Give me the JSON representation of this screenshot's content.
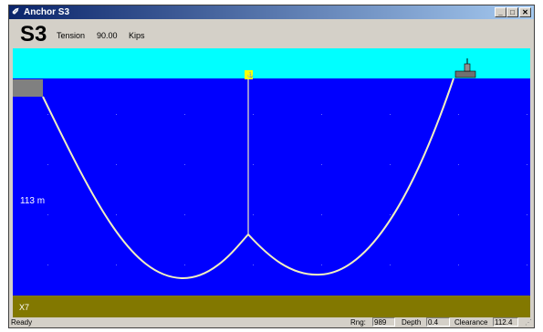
{
  "window": {
    "title": "Anchor S3"
  },
  "header": {
    "anchor_id": "S3",
    "tension_label": "Tension",
    "tension_value": "90.00",
    "tension_unit": "Kips"
  },
  "scene": {
    "depth_label": "113 m",
    "seabed_label": "X7",
    "colors": {
      "sky": "#00ffff",
      "water": "#0000ff",
      "seabed": "#827800",
      "cable": "#f2f0c0",
      "anchor_block": "#808080",
      "buoy": "#ffff00"
    }
  },
  "status": {
    "ready": "Ready",
    "rng_label": "Rng:",
    "rng_value": "989",
    "depth_label": "Depth",
    "depth_value": "0.4",
    "clearance_label": "Clearance",
    "clearance_value": "112.4"
  }
}
